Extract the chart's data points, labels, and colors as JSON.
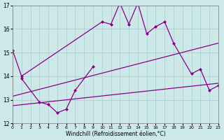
{
  "xlabel": "Windchill (Refroidissement éolien,°C)",
  "xlim": [
    0,
    23
  ],
  "ylim": [
    12,
    17
  ],
  "yticks": [
    12,
    13,
    14,
    15,
    16,
    17
  ],
  "xticks": [
    0,
    1,
    2,
    3,
    4,
    5,
    6,
    7,
    8,
    9,
    10,
    11,
    12,
    13,
    14,
    15,
    16,
    17,
    18,
    19,
    20,
    21,
    22,
    23
  ],
  "bg_color": "#cce8e8",
  "grid_color": "#aacccc",
  "line_color": "#880088",
  "line1": {
    "x": [
      0,
      1,
      10,
      11,
      12,
      13,
      14,
      15,
      16,
      17,
      18,
      20,
      21,
      22,
      23
    ],
    "y": [
      15.1,
      14.0,
      16.3,
      16.2,
      17.1,
      16.2,
      17.1,
      15.8,
      16.1,
      16.3,
      15.4,
      14.1,
      14.3,
      13.4,
      13.6
    ]
  },
  "line2": {
    "x": [
      1,
      3,
      4,
      5,
      6,
      7,
      9
    ],
    "y": [
      13.9,
      12.9,
      12.8,
      12.45,
      12.6,
      13.4,
      14.4
    ]
  },
  "trend1": {
    "x": [
      0,
      23
    ],
    "y": [
      13.15,
      15.4
    ]
  },
  "trend2": {
    "x": [
      0,
      23
    ],
    "y": [
      12.75,
      13.7
    ]
  }
}
